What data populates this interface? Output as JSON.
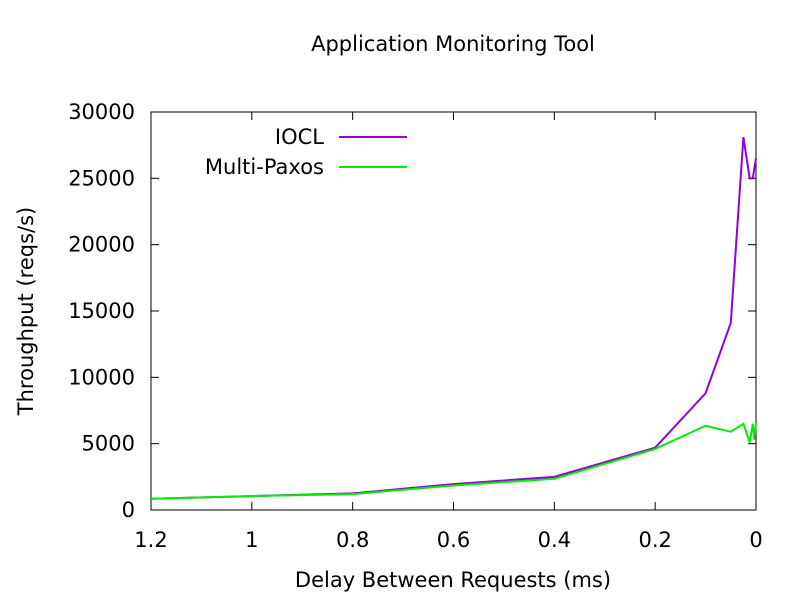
{
  "chart_data": {
    "type": "line",
    "title": "Application Monitoring Tool",
    "xlabel": "Delay Between Requests (ms)",
    "ylabel": "Throughput (reqs/s)",
    "xlim": [
      1.2,
      0
    ],
    "ylim": [
      0,
      30000
    ],
    "x_reversed": true,
    "x_ticks": [
      1.2,
      1,
      0.8,
      0.6,
      0.4,
      0.2,
      0
    ],
    "x_tick_labels": [
      "1.2",
      "1",
      "0.8",
      "0.6",
      "0.4",
      "0.2",
      "0"
    ],
    "y_ticks": [
      0,
      5000,
      10000,
      15000,
      20000,
      25000,
      30000
    ],
    "y_tick_labels": [
      "0",
      "5000",
      "10000",
      "15000",
      "20000",
      "25000",
      "30000"
    ],
    "grid": false,
    "legend_position": "top-left",
    "series": [
      {
        "name": "IOCL",
        "color": "#9400d3",
        "x": [
          1.2,
          1.0,
          0.8,
          0.6,
          0.4,
          0.2,
          0.1,
          0.05,
          0.025,
          0.0125,
          0.00625,
          0.003125,
          0.0
        ],
        "y": [
          850,
          1050,
          1250,
          1950,
          2500,
          4700,
          8800,
          14100,
          28100,
          25000,
          25000,
          25800,
          26500
        ]
      },
      {
        "name": "Multi-Paxos",
        "color": "#00ee00",
        "x": [
          1.2,
          1.0,
          0.8,
          0.6,
          0.4,
          0.2,
          0.1,
          0.05,
          0.025,
          0.0125,
          0.00625,
          0.003125,
          0.0
        ],
        "y": [
          850,
          1050,
          1200,
          1850,
          2350,
          4600,
          6350,
          5900,
          6500,
          5100,
          6500,
          5300,
          6600
        ]
      }
    ]
  }
}
